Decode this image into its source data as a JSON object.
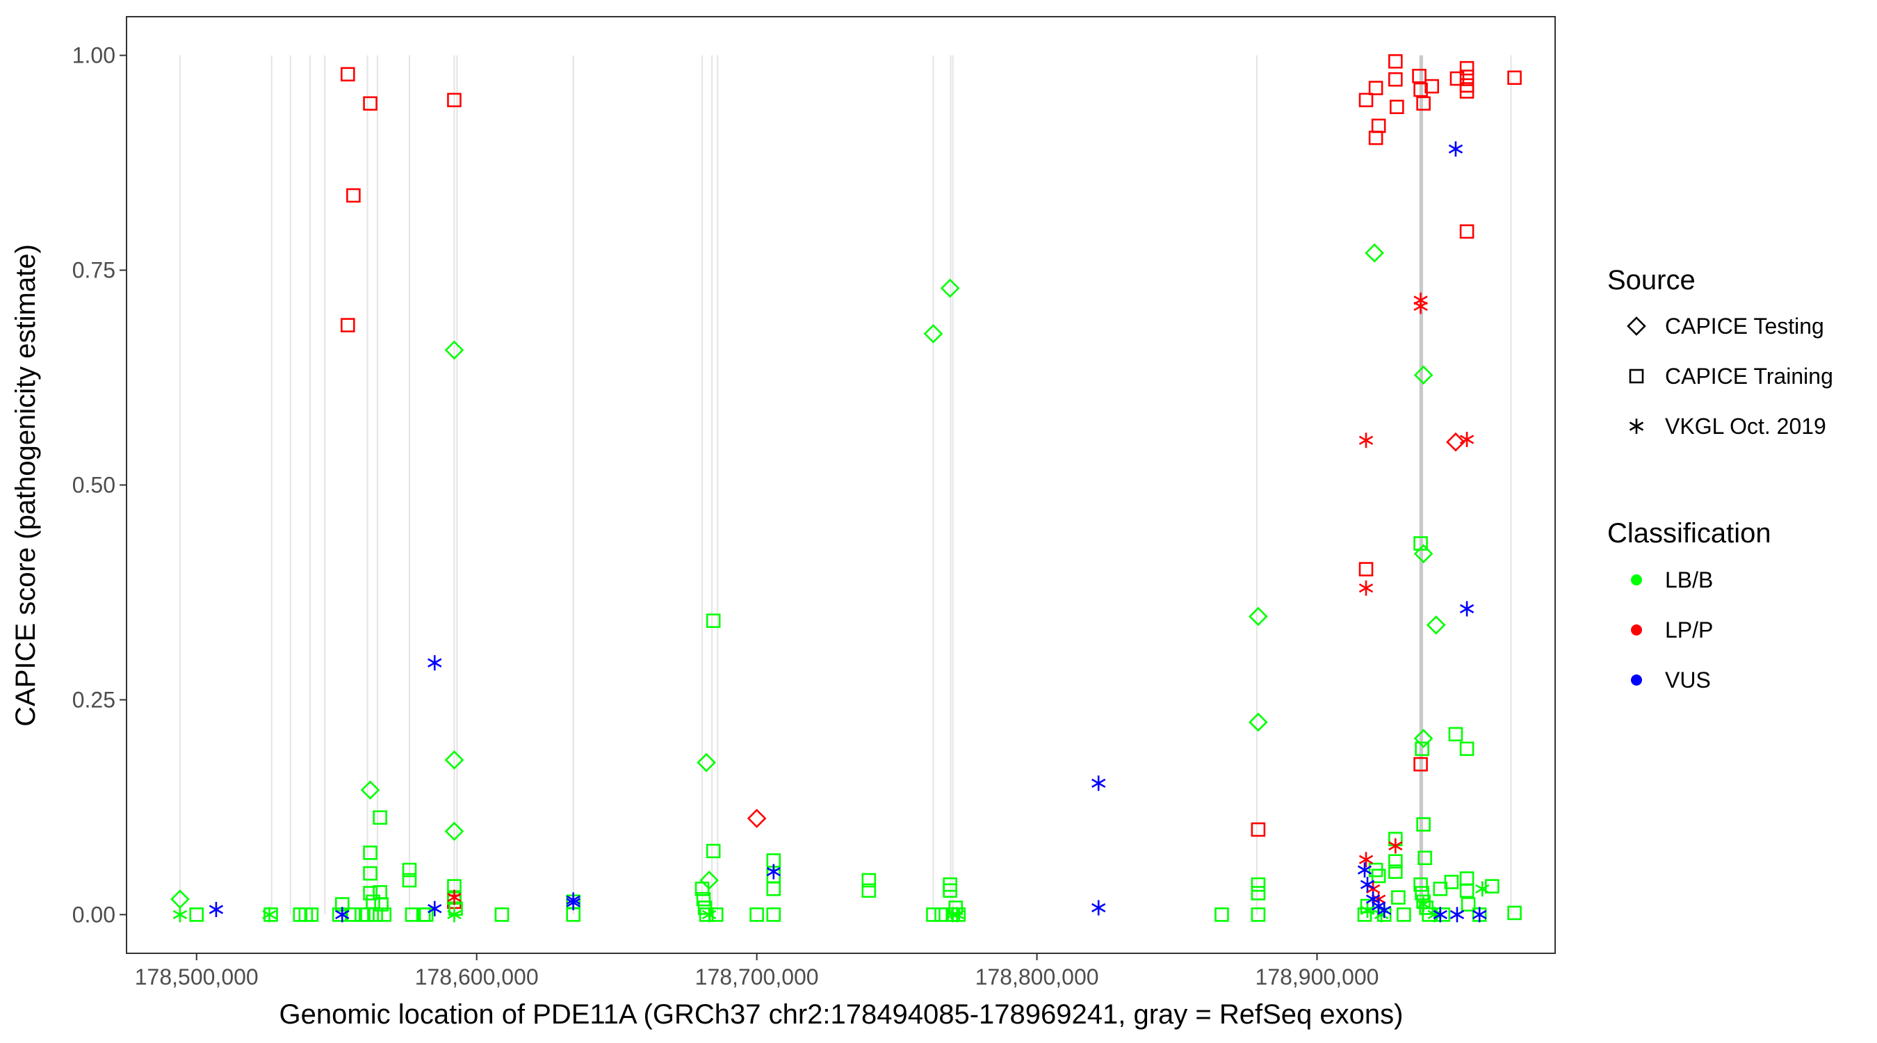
{
  "chart_data": {
    "type": "scatter",
    "title": "",
    "xlabel": "Genomic location of PDE11A (GRCh37 chr2:178494085-178969241, gray = RefSeq exons)",
    "ylabel": "CAPICE score (pathogenicity estimate)",
    "xlim": [
      178475000,
      178985000
    ],
    "ylim": [
      -0.045,
      1.045
    ],
    "x_ticks": [
      178500000,
      178600000,
      178700000,
      178800000,
      178900000
    ],
    "x_tick_labels": [
      "178,500,000",
      "178,600,000",
      "178,700,000",
      "178,800,000",
      "178,900,000"
    ],
    "y_ticks": [
      0,
      0.25,
      0.5,
      0.75,
      1.0
    ],
    "y_tick_labels": [
      "0.00",
      "0.25",
      "0.50",
      "0.75",
      "1.00"
    ],
    "grid": "vertical exon lines only",
    "exon_positions": [
      178494085,
      178526800,
      178533500,
      178540500,
      178545800,
      178561000,
      178564600,
      178576000,
      178592000,
      178593000,
      178634500,
      178680500,
      178684000,
      178686000,
      178763000,
      178769200,
      178770000,
      178878500,
      178936800,
      178937200,
      178937600,
      178969241
    ],
    "legend": {
      "placement": "right",
      "source_title": "Source",
      "source_items": [
        {
          "label": "CAPICE Testing",
          "shape": "diamond"
        },
        {
          "label": "CAPICE Training",
          "shape": "square"
        },
        {
          "label": "VKGL Oct. 2019",
          "shape": "asterisk"
        }
      ],
      "class_title": "Classification",
      "class_items": [
        {
          "label": "LB/B",
          "color": "#00ff00"
        },
        {
          "label": "LP/P",
          "color": "#ff0000"
        },
        {
          "label": "VUS",
          "color": "#0000ff"
        }
      ]
    },
    "colors": {
      "LB/B": "#00ff00",
      "LP/P": "#ff0000",
      "VUS": "#0000ff",
      "exon": "#e4e4e4",
      "exon_strong": "#c8c8c8"
    },
    "series": [
      {
        "source": "CAPICE Testing",
        "classification": "LB/B",
        "points": [
          [
            178494100,
            0.018
          ],
          [
            178562000,
            0.145
          ],
          [
            178592000,
            0.657
          ],
          [
            178592000,
            0.18
          ],
          [
            178592000,
            0.097
          ],
          [
            178682000,
            0.177
          ],
          [
            178683000,
            0.04
          ],
          [
            178763000,
            0.676
          ],
          [
            178769000,
            0.729
          ],
          [
            178879000,
            0.347
          ],
          [
            178879000,
            0.224
          ],
          [
            178920500,
            0.77
          ],
          [
            178938000,
            0.628
          ],
          [
            178938000,
            0.42
          ],
          [
            178938000,
            0.205
          ],
          [
            178942500,
            0.337
          ]
        ]
      },
      {
        "source": "CAPICE Testing",
        "classification": "LP/P",
        "points": [
          [
            178700000,
            0.112
          ],
          [
            178949500,
            0.55
          ]
        ]
      },
      {
        "source": "CAPICE Training",
        "classification": "LP/P",
        "points": [
          [
            178554000,
            0.978
          ],
          [
            178562000,
            0.944
          ],
          [
            178556000,
            0.837
          ],
          [
            178554000,
            0.686
          ],
          [
            178592000,
            0.948
          ],
          [
            178592000,
            0.015
          ],
          [
            178917500,
            0.948
          ],
          [
            178921000,
            0.962
          ],
          [
            178922000,
            0.918
          ],
          [
            178921000,
            0.904
          ],
          [
            178928000,
            0.993
          ],
          [
            178928000,
            0.972
          ],
          [
            178928500,
            0.94
          ],
          [
            178936500,
            0.976
          ],
          [
            178937000,
            0.96
          ],
          [
            178938000,
            0.944
          ],
          [
            178941000,
            0.964
          ],
          [
            178950000,
            0.973
          ],
          [
            178953500,
            0.985
          ],
          [
            178953500,
            0.975
          ],
          [
            178953500,
            0.965
          ],
          [
            178953500,
            0.958
          ],
          [
            178970500,
            0.974
          ],
          [
            178953500,
            0.795
          ],
          [
            178917500,
            0.402
          ],
          [
            178937000,
            0.175
          ],
          [
            178879000,
            0.099
          ]
        ]
      },
      {
        "source": "CAPICE Training",
        "classification": "LB/B",
        "points": [
          [
            178500000,
            0.0
          ],
          [
            178526500,
            0.0
          ],
          [
            178537000,
            0.0
          ],
          [
            178539000,
            0.0
          ],
          [
            178541000,
            0.0
          ],
          [
            178551000,
            0.0
          ],
          [
            178552000,
            0.012
          ],
          [
            178556000,
            0.0
          ],
          [
            178559000,
            0.0
          ],
          [
            178561000,
            0.0
          ],
          [
            178562000,
            0.072
          ],
          [
            178562000,
            0.048
          ],
          [
            178562000,
            0.025
          ],
          [
            178563000,
            0.015
          ],
          [
            178564000,
            0.0
          ],
          [
            178565500,
            0.113
          ],
          [
            178565500,
            0.026
          ],
          [
            178566000,
            0.012
          ],
          [
            178567000,
            0.0
          ],
          [
            178576000,
            0.052
          ],
          [
            178576000,
            0.04
          ],
          [
            178577000,
            0.0
          ],
          [
            178581000,
            0.0
          ],
          [
            178582000,
            0.0
          ],
          [
            178592000,
            0.033
          ],
          [
            178592000,
            0.02
          ],
          [
            178592500,
            0.007
          ],
          [
            178609000,
            0.0
          ],
          [
            178634500,
            0.015
          ],
          [
            178634500,
            0.0
          ],
          [
            178680500,
            0.03
          ],
          [
            178681000,
            0.018
          ],
          [
            178681500,
            0.008
          ],
          [
            178682000,
            0.0
          ],
          [
            178684500,
            0.342
          ],
          [
            178684500,
            0.074
          ],
          [
            178685500,
            0.0
          ],
          [
            178700000,
            0.0
          ],
          [
            178706000,
            0.063
          ],
          [
            178706000,
            0.045
          ],
          [
            178706000,
            0.03
          ],
          [
            178706000,
            0.0
          ],
          [
            178740000,
            0.04
          ],
          [
            178740000,
            0.028
          ],
          [
            178763000,
            0.0
          ],
          [
            178766000,
            0.0
          ],
          [
            178769000,
            0.035
          ],
          [
            178769000,
            0.028
          ],
          [
            178770000,
            0.0
          ],
          [
            178771000,
            0.008
          ],
          [
            178772000,
            0.0
          ],
          [
            178866000,
            0.0
          ],
          [
            178879000,
            0.035
          ],
          [
            178879000,
            0.025
          ],
          [
            178879000,
            0.0
          ],
          [
            178917000,
            0.0
          ],
          [
            178918000,
            0.01
          ],
          [
            178921000,
            0.052
          ],
          [
            178922000,
            0.045
          ],
          [
            178924000,
            0.0
          ],
          [
            178928000,
            0.088
          ],
          [
            178928000,
            0.062
          ],
          [
            178928000,
            0.05
          ],
          [
            178929000,
            0.02
          ],
          [
            178931000,
            0.0
          ],
          [
            178937000,
            0.432
          ],
          [
            178937500,
            0.193
          ],
          [
            178938000,
            0.105
          ],
          [
            178938500,
            0.066
          ],
          [
            178937000,
            0.035
          ],
          [
            178937500,
            0.025
          ],
          [
            178938000,
            0.015
          ],
          [
            178939000,
            0.008
          ],
          [
            178940000,
            0.0
          ],
          [
            178944000,
            0.03
          ],
          [
            178945000,
            0.0
          ],
          [
            178948000,
            0.038
          ],
          [
            178949500,
            0.21
          ],
          [
            178953500,
            0.193
          ],
          [
            178953500,
            0.042
          ],
          [
            178953500,
            0.028
          ],
          [
            178954000,
            0.012
          ],
          [
            178958000,
            0.0
          ],
          [
            178962500,
            0.033
          ],
          [
            178970500,
            0.002
          ]
        ]
      },
      {
        "source": "VKGL Oct. 2019",
        "classification": "LB/B",
        "points": [
          [
            178494100,
            0.0
          ],
          [
            178526000,
            0.0
          ],
          [
            178592000,
            0.0
          ],
          [
            178683000,
            0.0
          ],
          [
            178770000,
            0.0
          ],
          [
            178771500,
            0.0
          ],
          [
            178918000,
            0.005
          ],
          [
            178923000,
            0.0
          ],
          [
            178938000,
            0.012
          ],
          [
            178942000,
            0.0
          ],
          [
            178959000,
            0.03
          ]
        ]
      },
      {
        "source": "VKGL Oct. 2019",
        "classification": "LP/P",
        "points": [
          [
            178937000,
            0.715
          ],
          [
            178937000,
            0.708
          ],
          [
            178917500,
            0.552
          ],
          [
            178953500,
            0.553
          ],
          [
            178917500,
            0.38
          ],
          [
            178928000,
            0.08
          ],
          [
            178917500,
            0.064
          ],
          [
            178920000,
            0.03
          ],
          [
            178922000,
            0.018
          ],
          [
            178592000,
            0.02
          ]
        ]
      },
      {
        "source": "VKGL Oct. 2019",
        "classification": "VUS",
        "points": [
          [
            178507000,
            0.006
          ],
          [
            178552000,
            0.0
          ],
          [
            178585000,
            0.293
          ],
          [
            178585000,
            0.007
          ],
          [
            178634500,
            0.017
          ],
          [
            178634500,
            0.014
          ],
          [
            178706000,
            0.05
          ],
          [
            178822000,
            0.153
          ],
          [
            178822000,
            0.008
          ],
          [
            178917000,
            0.052
          ],
          [
            178918000,
            0.035
          ],
          [
            178920000,
            0.018
          ],
          [
            178922000,
            0.01
          ],
          [
            178924000,
            0.005
          ],
          [
            178944000,
            0.0
          ],
          [
            178950000,
            0.0
          ],
          [
            178949500,
            0.891
          ],
          [
            178953500,
            0.356
          ],
          [
            178958000,
            0.0
          ]
        ]
      }
    ]
  }
}
